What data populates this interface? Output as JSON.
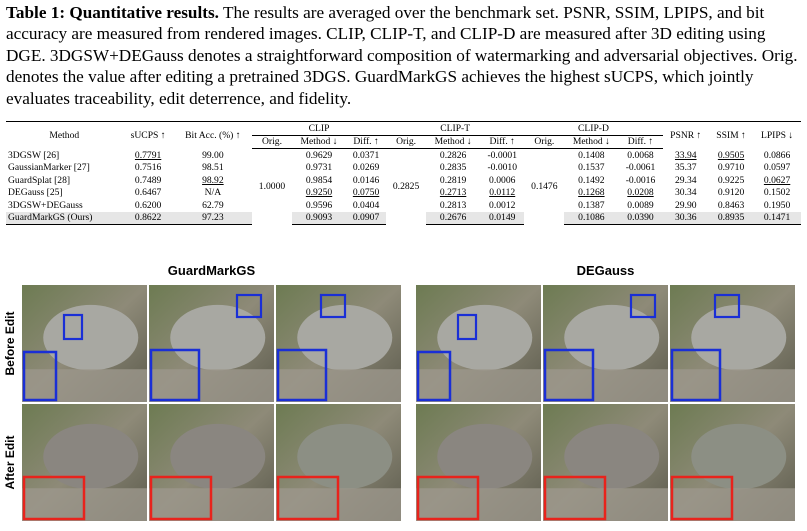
{
  "caption": {
    "label": "Table 1:",
    "title": "Quantitative results.",
    "text": "The results are averaged over the benchmark set. PSNR, SSIM, LPIPS, and bit accuracy are measured from rendered images. CLIP, CLIP-T, and CLIP-D are measured after 3D editing using DGE. 3DGSW+DEGauss denotes a straightforward composition of watermarking and adversarial objectives. Orig. denotes the value after editing a pretrained 3DGS. GuardMarkGS achieves the highest sUCPS, which jointly evaluates traceability, edit deterrence, and fidelity."
  },
  "table": {
    "columns": [
      "Method",
      "sUCPS ↑",
      "Bit Acc. (%) ↑",
      "PSNR ↑",
      "SSIM ↑",
      "LPIPS ↓"
    ],
    "groups": [
      {
        "name": "CLIP",
        "sub": [
          "Orig.",
          "Method ↓",
          "Diff. ↑"
        ],
        "orig": "1.0000"
      },
      {
        "name": "CLIP-T",
        "sub": [
          "Orig.",
          "Method ↓",
          "Diff. ↑"
        ],
        "orig": "0.2825"
      },
      {
        "name": "CLIP-D",
        "sub": [
          "Orig.",
          "Method ↓",
          "Diff. ↑"
        ],
        "orig": "0.1476"
      }
    ],
    "rows": [
      [
        "3DGSW [26]",
        "0.7791",
        "99.00",
        "0.9629",
        "0.0371",
        "0.2826",
        "-0.0001",
        "0.1408",
        "0.0068",
        "33.94",
        "0.9505",
        "0.0866"
      ],
      [
        "GaussianMarker [27]",
        "0.7516",
        "98.51",
        "0.9731",
        "0.0269",
        "0.2835",
        "-0.0010",
        "0.1537",
        "-0.0061",
        "35.37",
        "0.9710",
        "0.0597"
      ],
      [
        "GuardSplat [28]",
        "0.7489",
        "98.92",
        "0.9854",
        "0.0146",
        "0.2819",
        "0.0006",
        "0.1492",
        "-0.0016",
        "29.34",
        "0.9225",
        "0.0627"
      ],
      [
        "DEGauss [25]",
        "0.6467",
        "N/A",
        "0.9250",
        "0.0750",
        "0.2713",
        "0.0112",
        "0.1268",
        "0.0208",
        "30.34",
        "0.9120",
        "0.1502"
      ],
      [
        "3DGSW+DEGauss",
        "0.6200",
        "62.79",
        "0.9596",
        "0.0404",
        "0.2813",
        "0.0012",
        "0.1387",
        "0.0089",
        "29.90",
        "0.8463",
        "0.1950"
      ],
      [
        "GuardMarkGS (Ours)",
        "0.8622",
        "97.23",
        "0.9093",
        "0.0907",
        "0.2676",
        "0.0149",
        "0.1086",
        "0.0390",
        "30.36",
        "0.8935",
        "0.1471"
      ]
    ]
  },
  "figure": {
    "panels": [
      {
        "title": "GuardMarkGS"
      },
      {
        "title": "DEGauss"
      }
    ],
    "row_labels": [
      "Before Edit",
      "After Edit"
    ]
  }
}
